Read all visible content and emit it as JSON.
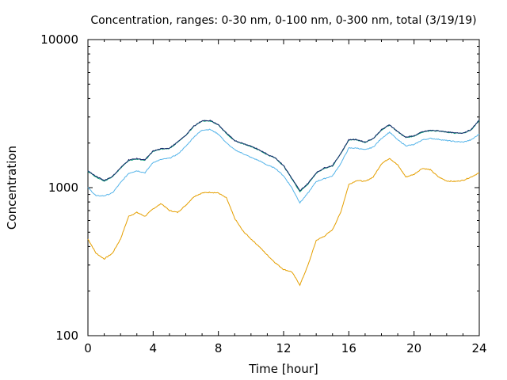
{
  "chart_data": {
    "type": "line",
    "title": "Concentration, ranges: 0-30 nm, 0-100 nm, 0-300 nm, total (3/19/19)",
    "xlabel": "Time [hour]",
    "ylabel": "Concentration",
    "xlim": [
      0,
      24
    ],
    "ylim": [
      100,
      10000
    ],
    "yscale": "log",
    "grid": false,
    "x_ticks": [
      0,
      4,
      8,
      12,
      16,
      20,
      24
    ],
    "x_tick_labels": [
      "0",
      "4",
      "8",
      "12",
      "16",
      "20",
      "24"
    ],
    "y_ticks": [
      100,
      1000,
      10000
    ],
    "y_tick_labels": [
      "100",
      "1000",
      "10000"
    ],
    "x": [
      0,
      0.5,
      1,
      1.5,
      2,
      2.5,
      3,
      3.5,
      4,
      4.5,
      5,
      5.5,
      6,
      6.5,
      7,
      7.5,
      8,
      8.5,
      9,
      9.5,
      10,
      10.5,
      11,
      11.5,
      12,
      12.5,
      13,
      13.5,
      14,
      14.5,
      15,
      15.5,
      16,
      16.5,
      17,
      17.5,
      18,
      18.5,
      19,
      19.5,
      20,
      20.5,
      21,
      21.5,
      22,
      22.5,
      23,
      23.5,
      24
    ],
    "series": [
      {
        "color": "#e59f00",
        "values": [
          450,
          360,
          330,
          360,
          450,
          640,
          680,
          640,
          720,
          780,
          700,
          680,
          760,
          870,
          920,
          930,
          920,
          850,
          620,
          510,
          450,
          400,
          350,
          310,
          280,
          270,
          220,
          300,
          440,
          470,
          520,
          680,
          1050,
          1120,
          1100,
          1180,
          1450,
          1580,
          1420,
          1180,
          1230,
          1350,
          1320,
          1180,
          1110,
          1100,
          1120,
          1180,
          1260
        ]
      },
      {
        "color": "#55b4e9",
        "values": [
          1000,
          880,
          880,
          920,
          1080,
          1250,
          1300,
          1260,
          1480,
          1550,
          1580,
          1680,
          1900,
          2200,
          2450,
          2470,
          2300,
          2000,
          1800,
          1700,
          1600,
          1520,
          1420,
          1350,
          1200,
          1000,
          790,
          920,
          1100,
          1150,
          1200,
          1450,
          1850,
          1850,
          1800,
          1880,
          2150,
          2370,
          2100,
          1920,
          1950,
          2100,
          2150,
          2120,
          2080,
          2050,
          2030,
          2100,
          2300
        ]
      },
      {
        "color": "#009e73",
        "values": [
          1290,
          1180,
          1110,
          1180,
          1350,
          1530,
          1560,
          1530,
          1760,
          1820,
          1840,
          2020,
          2250,
          2600,
          2820,
          2830,
          2650,
          2320,
          2070,
          1980,
          1900,
          1790,
          1670,
          1580,
          1400,
          1150,
          940,
          1060,
          1250,
          1350,
          1400,
          1690,
          2100,
          2100,
          2020,
          2140,
          2450,
          2650,
          2380,
          2180,
          2230,
          2370,
          2430,
          2410,
          2370,
          2330,
          2330,
          2450,
          2850
        ]
      },
      {
        "color": "#1a2a6c",
        "values": [
          1300,
          1190,
          1120,
          1190,
          1360,
          1540,
          1570,
          1540,
          1770,
          1830,
          1850,
          2030,
          2260,
          2610,
          2830,
          2840,
          2660,
          2330,
          2080,
          1990,
          1910,
          1800,
          1680,
          1590,
          1410,
          1160,
          950,
          1070,
          1260,
          1360,
          1410,
          1700,
          2110,
          2110,
          2030,
          2150,
          2460,
          2660,
          2390,
          2190,
          2240,
          2380,
          2440,
          2420,
          2380,
          2340,
          2340,
          2460,
          2870
        ]
      }
    ]
  }
}
